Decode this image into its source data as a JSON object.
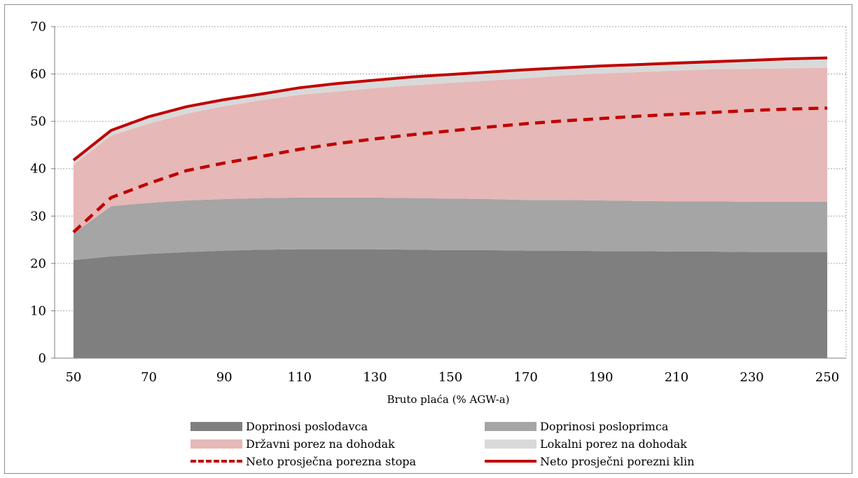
{
  "chart_data": {
    "type": "area",
    "title": "",
    "xlabel": "Bruto plaća (% AGW-a)",
    "ylabel": "",
    "x": [
      50,
      60,
      70,
      80,
      90,
      100,
      110,
      120,
      130,
      140,
      150,
      160,
      170,
      180,
      190,
      200,
      210,
      220,
      230,
      240,
      250
    ],
    "x_ticks": [
      50,
      70,
      90,
      110,
      130,
      150,
      170,
      190,
      210,
      230,
      250
    ],
    "y_ticks": [
      0,
      10,
      20,
      30,
      40,
      50,
      60,
      70
    ],
    "xlim": [
      45,
      255
    ],
    "ylim": [
      0,
      70
    ],
    "grid": true,
    "legend_position": "bottom",
    "stacked_series": [
      {
        "name": "Doprinosi poslodavca",
        "color": "#7f7f7f",
        "values": [
          20.7,
          21.5,
          22.0,
          22.4,
          22.7,
          22.9,
          23.0,
          23.0,
          23.0,
          22.9,
          22.8,
          22.8,
          22.7,
          22.7,
          22.6,
          22.6,
          22.5,
          22.5,
          22.4,
          22.4,
          22.4
        ]
      },
      {
        "name": "Doprinosi posloprimca",
        "color": "#a5a5a5",
        "values": [
          5.6,
          10.6,
          10.8,
          10.9,
          10.9,
          10.9,
          10.9,
          10.9,
          10.9,
          10.9,
          10.9,
          10.8,
          10.7,
          10.7,
          10.7,
          10.6,
          10.6,
          10.6,
          10.6,
          10.6,
          10.6
        ]
      },
      {
        "name": "Državni porez na dohodak",
        "color": "#e6b8b7",
        "values": [
          14.5,
          14.9,
          16.7,
          18.3,
          19.6,
          20.7,
          21.7,
          22.4,
          23.1,
          23.8,
          24.4,
          25.0,
          25.7,
          26.3,
          26.8,
          27.2,
          27.6,
          27.9,
          28.1,
          28.2,
          28.3
        ]
      },
      {
        "name": "Lokalni porez na dohodak",
        "color": "#d9d9d9",
        "values": [
          0.9,
          1.1,
          1.4,
          1.6,
          1.6,
          1.6,
          1.6,
          1.7,
          1.7,
          1.7,
          1.8,
          1.8,
          1.9,
          1.9,
          1.9,
          1.9,
          2.0,
          2.0,
          2.0,
          2.0,
          2.1
        ]
      }
    ],
    "line_series": [
      {
        "name": "Neto prosječna porezna stopa",
        "color": "#c00000",
        "style": "dashed",
        "values": [
          26.6,
          33.9,
          36.9,
          39.6,
          41.2,
          42.6,
          44.1,
          45.3,
          46.3,
          47.2,
          48.0,
          48.8,
          49.5,
          50.1,
          50.6,
          51.1,
          51.5,
          51.9,
          52.3,
          52.6,
          52.8
        ]
      },
      {
        "name": "Neto prosječni porezni klin",
        "color": "#c00000",
        "style": "solid",
        "values": [
          41.8,
          48.1,
          51.0,
          53.1,
          54.6,
          55.8,
          57.1,
          58.0,
          58.7,
          59.4,
          59.9,
          60.4,
          60.9,
          61.3,
          61.7,
          62.0,
          62.3,
          62.6,
          62.9,
          63.2,
          63.4
        ]
      }
    ]
  },
  "legend": {
    "doprinosi_poslodavca": "Doprinosi poslodavca",
    "doprinosi_posloprimca": "Doprinosi posloprimca",
    "drzavni_porez": "Državni porez na dohodak",
    "lokalni_porez": "Lokalni porez na dohodak",
    "neto_stopa": "Neto prosječna porezna stopa",
    "neto_klin": "Neto prosječni porezni klin"
  }
}
